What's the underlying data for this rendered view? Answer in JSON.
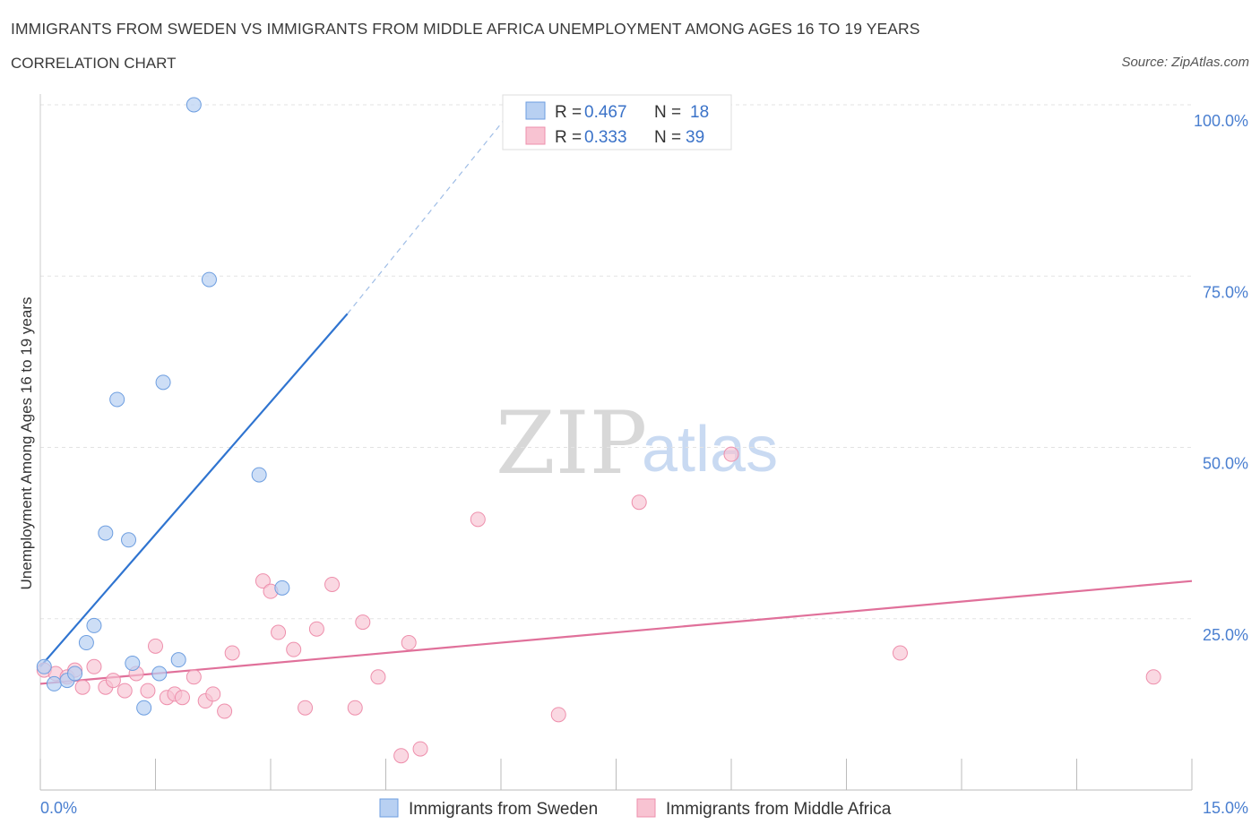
{
  "header": {
    "title": "IMMIGRANTS FROM SWEDEN VS IMMIGRANTS FROM MIDDLE AFRICA UNEMPLOYMENT AMONG AGES 16 TO 19 YEARS",
    "subtitle": "CORRELATION CHART",
    "source": "Source: ZipAtlas.com"
  },
  "watermark": {
    "zip": "ZIP",
    "atlas": "atlas"
  },
  "colors": {
    "sweden_fill": "#b8d0f2",
    "sweden_stroke": "#6d9ee0",
    "sweden_line": "#2f74d0",
    "africa_fill": "#f8c3d2",
    "africa_stroke": "#ee8fac",
    "africa_line": "#e0709a"
  },
  "legend": {
    "rows": [
      {
        "r_label": "R = ",
        "r_value": "0.467",
        "n_label": "N = ",
        "n_value": "18"
      },
      {
        "r_label": "R = ",
        "r_value": "0.333",
        "n_label": "N = ",
        "n_value": "39"
      }
    ]
  },
  "chart_data": {
    "type": "scatter",
    "title": "IMMIGRANTS FROM SWEDEN VS IMMIGRANTS FROM MIDDLE AFRICA UNEMPLOYMENT AMONG AGES 16 TO 19 YEARS",
    "xlabel": "",
    "ylabel": "Unemployment Among Ages 16 to 19 years",
    "xlim": [
      0,
      15
    ],
    "ylim": [
      0,
      100
    ],
    "x_tick_labels": [
      "0.0%",
      "15.0%"
    ],
    "y_tick_labels": [
      "25.0%",
      "50.0%",
      "75.0%",
      "100.0%"
    ],
    "y_ticks": [
      25,
      50,
      75,
      100
    ],
    "series": [
      {
        "name": "Immigrants from Sweden",
        "points": [
          {
            "x": 0.05,
            "y": 18.0
          },
          {
            "x": 0.18,
            "y": 15.5
          },
          {
            "x": 0.35,
            "y": 16.0
          },
          {
            "x": 0.45,
            "y": 17.0
          },
          {
            "x": 0.6,
            "y": 21.5
          },
          {
            "x": 0.7,
            "y": 24.0
          },
          {
            "x": 0.85,
            "y": 37.5
          },
          {
            "x": 1.0,
            "y": 57.0
          },
          {
            "x": 1.15,
            "y": 36.5
          },
          {
            "x": 1.2,
            "y": 18.5
          },
          {
            "x": 1.35,
            "y": 12.0
          },
          {
            "x": 1.55,
            "y": 17.0
          },
          {
            "x": 1.6,
            "y": 59.5
          },
          {
            "x": 1.8,
            "y": 19.0
          },
          {
            "x": 2.0,
            "y": 100.0
          },
          {
            "x": 2.2,
            "y": 74.5
          },
          {
            "x": 2.85,
            "y": 46.0
          },
          {
            "x": 3.15,
            "y": 29.5
          }
        ],
        "trend": {
          "x0": 0.0,
          "y0": 18.0,
          "x1": 4.0,
          "y1": 69.5,
          "dashed_to_x": 6.2,
          "dashed_to_y": 100.0
        }
      },
      {
        "name": "Immigrants from Middle Africa",
        "points": [
          {
            "x": 0.05,
            "y": 17.5
          },
          {
            "x": 0.2,
            "y": 17.0
          },
          {
            "x": 0.35,
            "y": 16.5
          },
          {
            "x": 0.45,
            "y": 17.5
          },
          {
            "x": 0.55,
            "y": 15.0
          },
          {
            "x": 0.7,
            "y": 18.0
          },
          {
            "x": 0.85,
            "y": 15.0
          },
          {
            "x": 0.95,
            "y": 16.0
          },
          {
            "x": 1.1,
            "y": 14.5
          },
          {
            "x": 1.25,
            "y": 17.0
          },
          {
            "x": 1.4,
            "y": 14.5
          },
          {
            "x": 1.5,
            "y": 21.0
          },
          {
            "x": 1.65,
            "y": 13.5
          },
          {
            "x": 1.75,
            "y": 14.0
          },
          {
            "x": 1.85,
            "y": 13.5
          },
          {
            "x": 2.0,
            "y": 16.5
          },
          {
            "x": 2.15,
            "y": 13.0
          },
          {
            "x": 2.25,
            "y": 14.0
          },
          {
            "x": 2.4,
            "y": 11.5
          },
          {
            "x": 2.5,
            "y": 20.0
          },
          {
            "x": 2.9,
            "y": 30.5
          },
          {
            "x": 3.0,
            "y": 29.0
          },
          {
            "x": 3.1,
            "y": 23.0
          },
          {
            "x": 3.3,
            "y": 20.5
          },
          {
            "x": 3.45,
            "y": 12.0
          },
          {
            "x": 3.6,
            "y": 23.5
          },
          {
            "x": 3.8,
            "y": 30.0
          },
          {
            "x": 4.1,
            "y": 12.0
          },
          {
            "x": 4.2,
            "y": 24.5
          },
          {
            "x": 4.4,
            "y": 16.5
          },
          {
            "x": 4.7,
            "y": 5.0
          },
          {
            "x": 4.8,
            "y": 21.5
          },
          {
            "x": 4.95,
            "y": 6.0
          },
          {
            "x": 5.7,
            "y": 39.5
          },
          {
            "x": 6.75,
            "y": 11.0
          },
          {
            "x": 7.8,
            "y": 42.0
          },
          {
            "x": 9.0,
            "y": 49.0
          },
          {
            "x": 11.2,
            "y": 20.0
          },
          {
            "x": 14.5,
            "y": 16.5
          }
        ],
        "trend": {
          "x0": 0.0,
          "y0": 15.5,
          "x1": 15.0,
          "y1": 30.5
        }
      }
    ]
  },
  "bottom_legend": {
    "items": [
      {
        "label": "Immigrants from Sweden"
      },
      {
        "label": "Immigrants from Middle Africa"
      }
    ]
  }
}
